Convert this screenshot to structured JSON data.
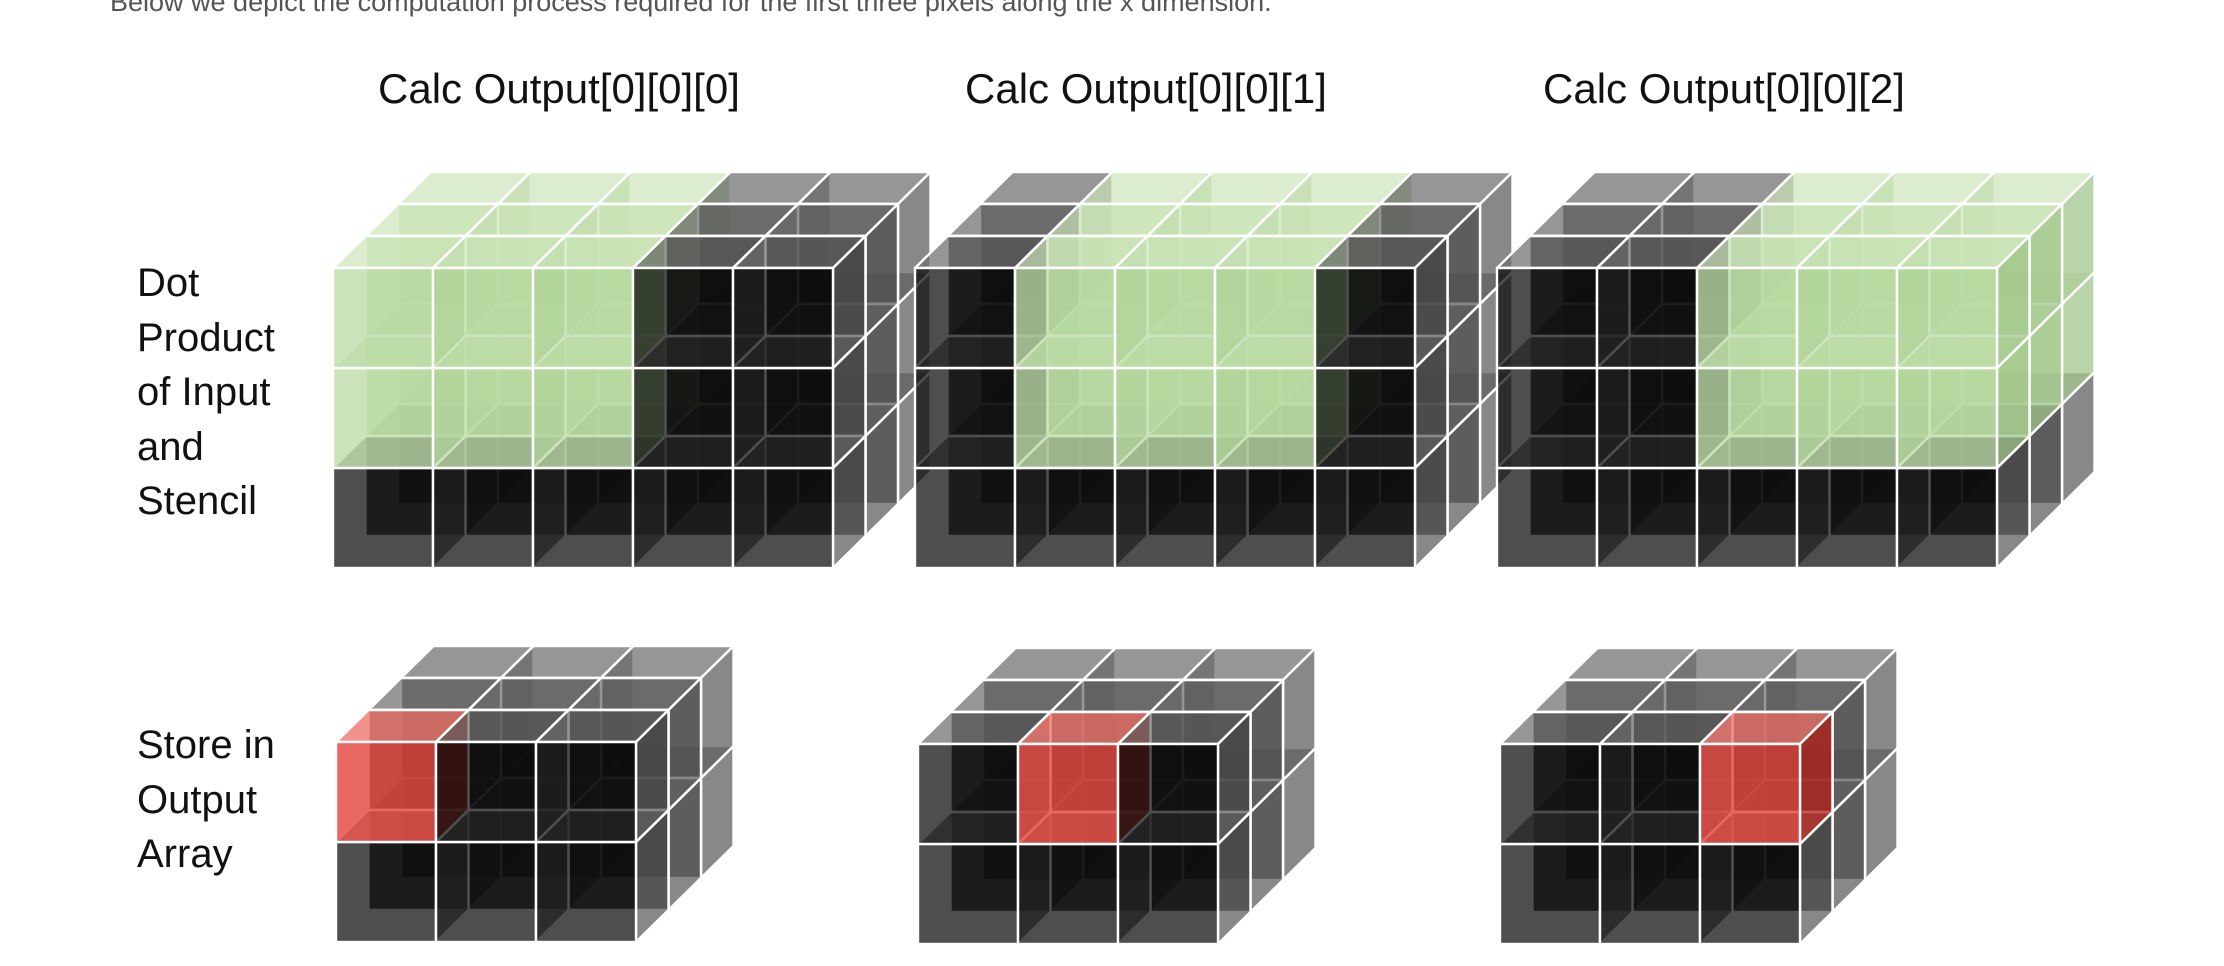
{
  "caption": "Below we depict the computation process required for the first three pixels along the x dimension.",
  "titles": [
    "Calc Output[0][0][0]",
    "Calc Output[0][0][1]",
    "Calc Output[0][0][2]"
  ],
  "rows": {
    "dot_product": [
      "Dot",
      "Product",
      "of Input",
      "and",
      "Stencil"
    ],
    "store": [
      "Store in",
      "Output",
      "Array"
    ]
  },
  "grids": {
    "input": {
      "cols": 5,
      "rows": 3,
      "depth": 3
    },
    "output": {
      "cols": 3,
      "rows": 2,
      "depth": 3
    }
  },
  "highlights": {
    "stencil_start_cols": [
      0,
      1,
      2
    ],
    "stencil_span": {
      "cols": 3,
      "rows": 2,
      "depth": 3
    },
    "output_cells": [
      0,
      1,
      2
    ]
  },
  "colors": {
    "cube_dark": "#0a0a0a",
    "cube_grey": "#6e6e6e",
    "edge": "#ffffff",
    "stencil": "#b7d9a1",
    "output": "#e5473f"
  }
}
